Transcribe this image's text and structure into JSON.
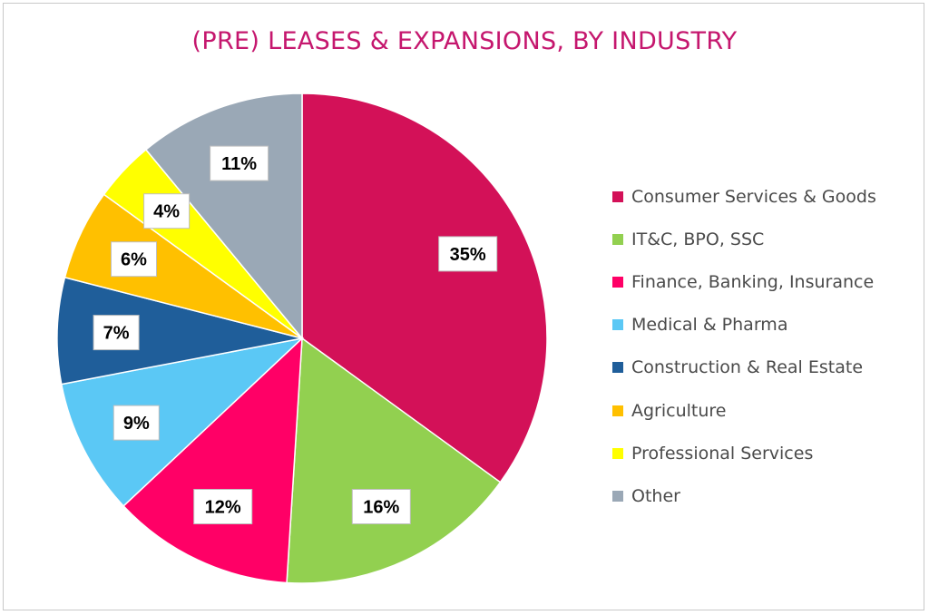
{
  "chart_data": {
    "type": "pie",
    "title": "(PRE) LEASES & EXPANSIONS, BY INDUSTRY",
    "legend_position": "right",
    "slices": [
      {
        "label": "Consumer Services & Goods",
        "value": 35,
        "data_label": "35%",
        "color": "#d31158"
      },
      {
        "label": "IT&C, BPO, SSC",
        "value": 16,
        "data_label": "16%",
        "color": "#92d050"
      },
      {
        "label": "Finance, Banking, Insurance",
        "value": 12,
        "data_label": "12%",
        "color": "#ff0066"
      },
      {
        "label": "Medical & Pharma",
        "value": 9,
        "data_label": "9%",
        "color": "#5bc8f5"
      },
      {
        "label": "Construction & Real Estate",
        "value": 7,
        "data_label": "7%",
        "color": "#1f5e9a"
      },
      {
        "label": "Agriculture",
        "value": 6,
        "data_label": "6%",
        "color": "#ffc000"
      },
      {
        "label": "Professional Services",
        "value": 4,
        "data_label": "4%",
        "color": "#ffff00"
      },
      {
        "label": "Other",
        "value": 11,
        "data_label": "11%",
        "color": "#9aa8b6"
      }
    ]
  }
}
